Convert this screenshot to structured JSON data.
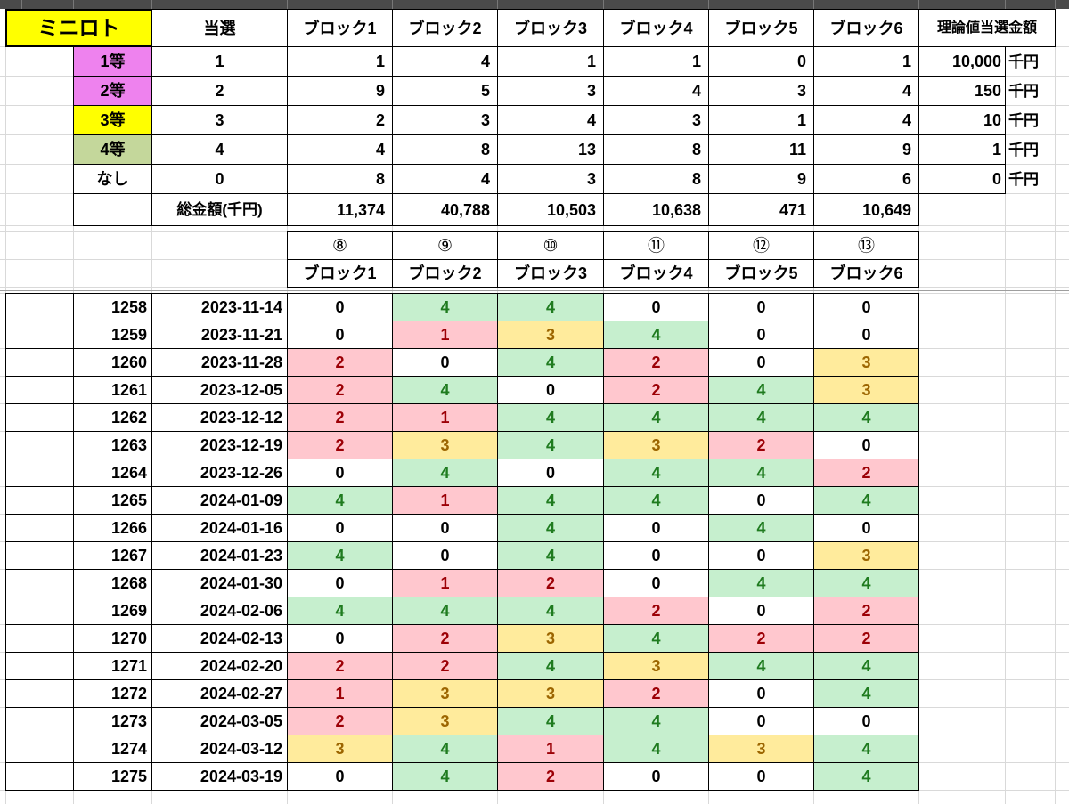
{
  "title": "ミニロト",
  "unit_label": "千円",
  "colors": {
    "topbar_bg": "#4A4A4A",
    "title_bg": "#FFFF00",
    "prize12_bg": "#EE82EE",
    "prize3_bg": "#FFFF00",
    "prize4_bg": "#C4D79B",
    "hit4_bg": "#C6EFCE",
    "hit4_text": "#1F7B1F",
    "hit12_bg": "#FFC7CE",
    "hit12_text": "#9C0006",
    "hit3_bg": "#FFEB9C",
    "hit3_text": "#9C6500"
  },
  "summary_table": {
    "win_header": "当選",
    "amount_header": "理論値当選金額",
    "block_headers": [
      "ブロック1",
      "ブロック2",
      "ブロック3",
      "ブロック4",
      "ブロック5",
      "ブロック6"
    ],
    "rows": [
      {
        "label": "1等",
        "win": "1",
        "blocks": [
          "1",
          "4",
          "1",
          "1",
          "0",
          "1"
        ],
        "amount": "10,000",
        "bg": "#EE82EE"
      },
      {
        "label": "2等",
        "win": "2",
        "blocks": [
          "9",
          "5",
          "3",
          "4",
          "3",
          "4"
        ],
        "amount": "150",
        "bg": "#EE82EE"
      },
      {
        "label": "3等",
        "win": "3",
        "blocks": [
          "2",
          "3",
          "4",
          "3",
          "1",
          "4"
        ],
        "amount": "10",
        "bg": "#FFFF00"
      },
      {
        "label": "4等",
        "win": "4",
        "blocks": [
          "4",
          "8",
          "13",
          "8",
          "11",
          "9"
        ],
        "amount": "1",
        "bg": "#C4D79B"
      },
      {
        "label": "なし",
        "win": "0",
        "blocks": [
          "8",
          "4",
          "3",
          "8",
          "9",
          "6"
        ],
        "amount": "0",
        "bg": "#FFFFFF"
      }
    ],
    "totals": {
      "label": "総金額(千円)",
      "values": [
        "11,374",
        "40,788",
        "10,503",
        "10,638",
        "471",
        "10,649"
      ]
    }
  },
  "results_table": {
    "circled_headers": [
      "⑧",
      "⑨",
      "⑩",
      "⑪",
      "⑫",
      "⑬"
    ],
    "block_headers": [
      "ブロック1",
      "ブロック2",
      "ブロック3",
      "ブロック4",
      "ブロック5",
      "ブロック6"
    ],
    "rows": [
      {
        "draw": "1258",
        "date": "2023-11-14",
        "values": [
          0,
          4,
          4,
          0,
          0,
          0
        ]
      },
      {
        "draw": "1259",
        "date": "2023-11-21",
        "values": [
          0,
          1,
          3,
          4,
          0,
          0
        ]
      },
      {
        "draw": "1260",
        "date": "2023-11-28",
        "values": [
          2,
          0,
          4,
          2,
          0,
          3
        ]
      },
      {
        "draw": "1261",
        "date": "2023-12-05",
        "values": [
          2,
          4,
          0,
          2,
          4,
          3
        ]
      },
      {
        "draw": "1262",
        "date": "2023-12-12",
        "values": [
          2,
          1,
          4,
          4,
          4,
          4
        ]
      },
      {
        "draw": "1263",
        "date": "2023-12-19",
        "values": [
          2,
          3,
          4,
          3,
          2,
          0
        ]
      },
      {
        "draw": "1264",
        "date": "2023-12-26",
        "values": [
          0,
          4,
          0,
          4,
          4,
          2
        ]
      },
      {
        "draw": "1265",
        "date": "2024-01-09",
        "values": [
          4,
          1,
          4,
          4,
          0,
          4
        ]
      },
      {
        "draw": "1266",
        "date": "2024-01-16",
        "values": [
          0,
          0,
          4,
          0,
          4,
          0
        ]
      },
      {
        "draw": "1267",
        "date": "2024-01-23",
        "values": [
          4,
          0,
          4,
          0,
          0,
          3
        ]
      },
      {
        "draw": "1268",
        "date": "2024-01-30",
        "values": [
          0,
          1,
          2,
          0,
          4,
          4
        ]
      },
      {
        "draw": "1269",
        "date": "2024-02-06",
        "values": [
          4,
          4,
          4,
          2,
          0,
          2
        ]
      },
      {
        "draw": "1270",
        "date": "2024-02-13",
        "values": [
          0,
          2,
          3,
          4,
          2,
          2
        ]
      },
      {
        "draw": "1271",
        "date": "2024-02-20",
        "values": [
          2,
          2,
          4,
          3,
          4,
          4
        ]
      },
      {
        "draw": "1272",
        "date": "2024-02-27",
        "values": [
          1,
          3,
          3,
          2,
          0,
          4
        ]
      },
      {
        "draw": "1273",
        "date": "2024-03-05",
        "values": [
          2,
          3,
          4,
          4,
          0,
          0
        ]
      },
      {
        "draw": "1274",
        "date": "2024-03-12",
        "values": [
          3,
          4,
          1,
          4,
          3,
          4
        ]
      },
      {
        "draw": "1275",
        "date": "2024-03-19",
        "values": [
          0,
          4,
          2,
          0,
          0,
          4
        ]
      }
    ]
  }
}
